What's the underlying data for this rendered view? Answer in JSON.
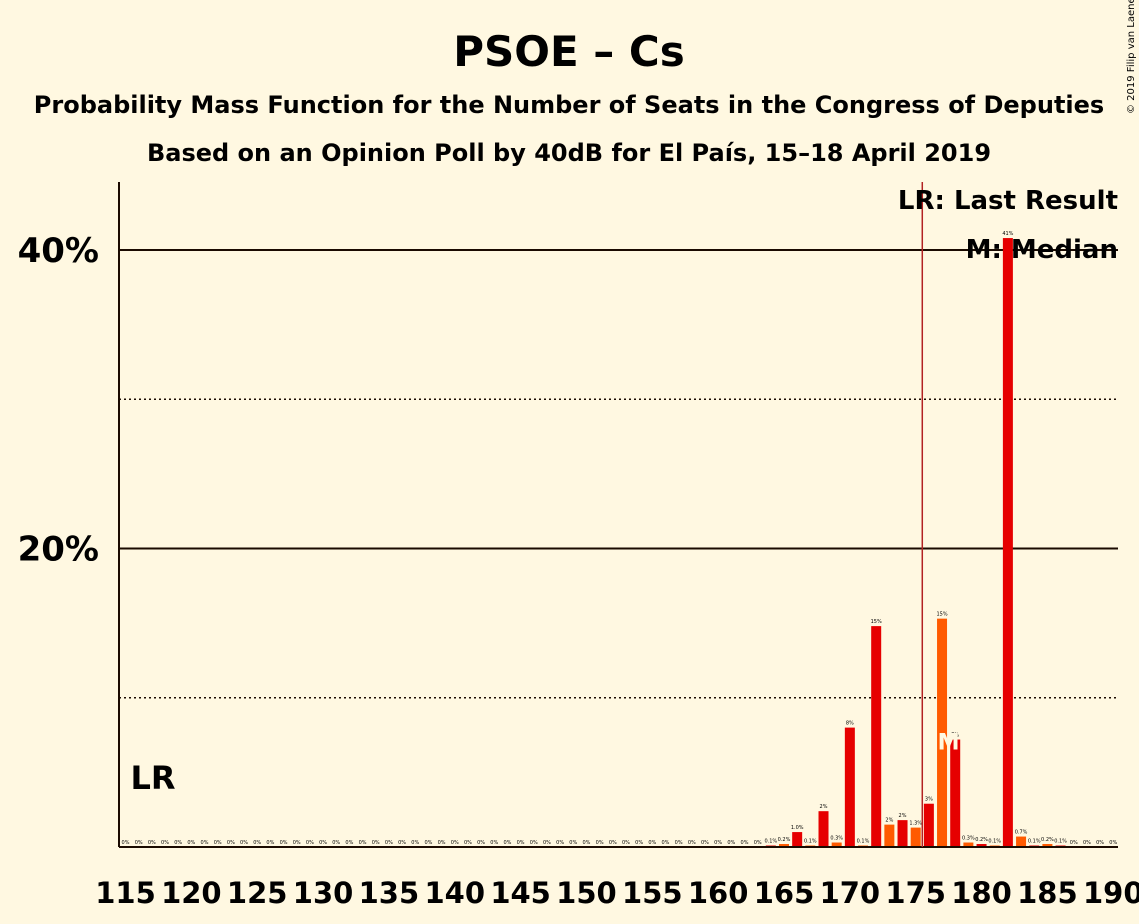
{
  "title": "PSOE – Cs",
  "subtitle1": "Probability Mass Function for the Number of Seats in the Congress of Deputies",
  "subtitle2": "Based on an Opinion Poll by 40dB for El País, 15–18 April 2019",
  "copyright": "© 2019 Filip van Laenen",
  "legend": {
    "last_result": "LR: Last Result",
    "median": "M: Median"
  },
  "lr_label": "LR",
  "median_marker": "M",
  "colors": {
    "background": "#FFF8E1",
    "bar_primary": "#E60000",
    "bar_secondary": "#FF5A00",
    "lr_line": "#B22222",
    "text": "#1a0a00"
  },
  "chart_data": {
    "type": "bar",
    "xlim": [
      115,
      190
    ],
    "ylim": [
      0,
      44
    ],
    "yticks": [
      {
        "value": 20,
        "label": "20%"
      },
      {
        "value": 40,
        "label": "40%"
      }
    ],
    "dotted_gridlines": [
      10,
      30
    ],
    "xticks": [
      115,
      120,
      125,
      130,
      135,
      140,
      145,
      150,
      155,
      160,
      165,
      170,
      175,
      180,
      185,
      190
    ],
    "last_result": 176,
    "median": 178,
    "bars": [
      {
        "seats": 115,
        "value": 0,
        "label": "0%"
      },
      {
        "seats": 116,
        "value": 0,
        "label": "0%"
      },
      {
        "seats": 117,
        "value": 0,
        "label": "0%"
      },
      {
        "seats": 118,
        "value": 0,
        "label": "0%"
      },
      {
        "seats": 119,
        "value": 0,
        "label": "0%"
      },
      {
        "seats": 120,
        "value": 0,
        "label": "0%"
      },
      {
        "seats": 121,
        "value": 0,
        "label": "0%"
      },
      {
        "seats": 122,
        "value": 0,
        "label": "0%"
      },
      {
        "seats": 123,
        "value": 0,
        "label": "0%"
      },
      {
        "seats": 124,
        "value": 0,
        "label": "0%"
      },
      {
        "seats": 125,
        "value": 0,
        "label": "0%"
      },
      {
        "seats": 126,
        "value": 0,
        "label": "0%"
      },
      {
        "seats": 127,
        "value": 0,
        "label": "0%"
      },
      {
        "seats": 128,
        "value": 0,
        "label": "0%"
      },
      {
        "seats": 129,
        "value": 0,
        "label": "0%"
      },
      {
        "seats": 130,
        "value": 0,
        "label": "0%"
      },
      {
        "seats": 131,
        "value": 0,
        "label": "0%"
      },
      {
        "seats": 132,
        "value": 0,
        "label": "0%"
      },
      {
        "seats": 133,
        "value": 0,
        "label": "0%"
      },
      {
        "seats": 134,
        "value": 0,
        "label": "0%"
      },
      {
        "seats": 135,
        "value": 0,
        "label": "0%"
      },
      {
        "seats": 136,
        "value": 0,
        "label": "0%"
      },
      {
        "seats": 137,
        "value": 0,
        "label": "0%"
      },
      {
        "seats": 138,
        "value": 0,
        "label": "0%"
      },
      {
        "seats": 139,
        "value": 0,
        "label": "0%"
      },
      {
        "seats": 140,
        "value": 0,
        "label": "0%"
      },
      {
        "seats": 141,
        "value": 0,
        "label": "0%"
      },
      {
        "seats": 142,
        "value": 0,
        "label": "0%"
      },
      {
        "seats": 143,
        "value": 0,
        "label": "0%"
      },
      {
        "seats": 144,
        "value": 0,
        "label": "0%"
      },
      {
        "seats": 145,
        "value": 0,
        "label": "0%"
      },
      {
        "seats": 146,
        "value": 0,
        "label": "0%"
      },
      {
        "seats": 147,
        "value": 0,
        "label": "0%"
      },
      {
        "seats": 148,
        "value": 0,
        "label": "0%"
      },
      {
        "seats": 149,
        "value": 0,
        "label": "0%"
      },
      {
        "seats": 150,
        "value": 0,
        "label": "0%"
      },
      {
        "seats": 151,
        "value": 0,
        "label": "0%"
      },
      {
        "seats": 152,
        "value": 0,
        "label": "0%"
      },
      {
        "seats": 153,
        "value": 0,
        "label": "0%"
      },
      {
        "seats": 154,
        "value": 0,
        "label": "0%"
      },
      {
        "seats": 155,
        "value": 0,
        "label": "0%"
      },
      {
        "seats": 156,
        "value": 0,
        "label": "0%"
      },
      {
        "seats": 157,
        "value": 0,
        "label": "0%"
      },
      {
        "seats": 158,
        "value": 0,
        "label": "0%"
      },
      {
        "seats": 159,
        "value": 0,
        "label": "0%"
      },
      {
        "seats": 160,
        "value": 0,
        "label": "0%"
      },
      {
        "seats": 161,
        "value": 0,
        "label": "0%"
      },
      {
        "seats": 162,
        "value": 0,
        "label": "0%"
      },
      {
        "seats": 163,
        "value": 0,
        "label": "0%"
      },
      {
        "seats": 164,
        "value": 0.1,
        "label": "0.1%"
      },
      {
        "seats": 165,
        "value": 0.2,
        "label": "0.2%"
      },
      {
        "seats": 166,
        "value": 1.0,
        "label": "1.0%"
      },
      {
        "seats": 167,
        "value": 0.1,
        "label": "0.1%"
      },
      {
        "seats": 168,
        "value": 2.4,
        "label": "2%"
      },
      {
        "seats": 169,
        "value": 0.3,
        "label": "0.3%"
      },
      {
        "seats": 170,
        "value": 8.0,
        "label": "8%"
      },
      {
        "seats": 171,
        "value": 0.1,
        "label": "0.1%"
      },
      {
        "seats": 172,
        "value": 14.8,
        "label": "15%"
      },
      {
        "seats": 173,
        "value": 1.5,
        "label": "2%"
      },
      {
        "seats": 174,
        "value": 1.8,
        "label": "2%"
      },
      {
        "seats": 175,
        "value": 1.3,
        "label": "1.3%"
      },
      {
        "seats": 176,
        "value": 2.9,
        "label": "3%"
      },
      {
        "seats": 177,
        "value": 15.3,
        "label": "15%"
      },
      {
        "seats": 178,
        "value": 7.2,
        "label": "7%"
      },
      {
        "seats": 179,
        "value": 0.3,
        "label": "0.3%"
      },
      {
        "seats": 180,
        "value": 0.2,
        "label": "0.2%"
      },
      {
        "seats": 181,
        "value": 0.1,
        "label": "0.1%"
      },
      {
        "seats": 182,
        "value": 40.8,
        "label": "41%"
      },
      {
        "seats": 183,
        "value": 0.7,
        "label": "0.7%"
      },
      {
        "seats": 184,
        "value": 0.1,
        "label": "0.1%"
      },
      {
        "seats": 185,
        "value": 0.2,
        "label": "0.2%"
      },
      {
        "seats": 186,
        "value": 0.1,
        "label": "0.1%"
      },
      {
        "seats": 187,
        "value": 0,
        "label": "0%"
      },
      {
        "seats": 188,
        "value": 0,
        "label": "0%"
      },
      {
        "seats": 189,
        "value": 0,
        "label": "0%"
      },
      {
        "seats": 190,
        "value": 0,
        "label": "0%"
      }
    ]
  }
}
